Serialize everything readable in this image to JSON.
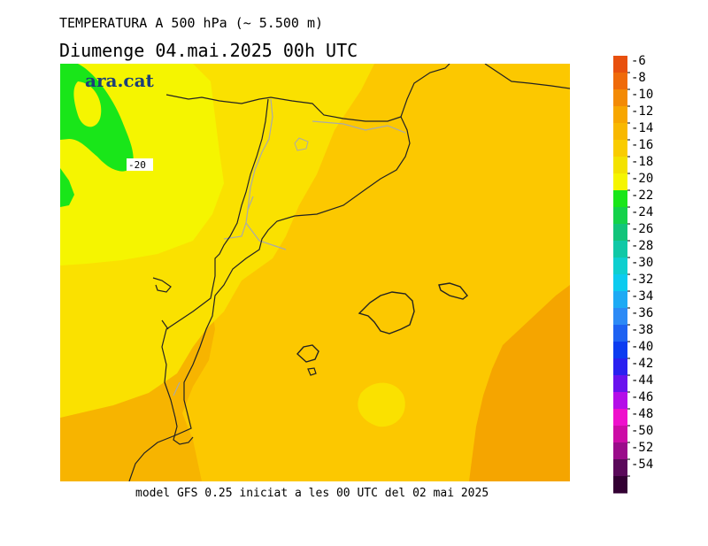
{
  "header": {
    "title": "TEMPERATURA A 500 hPa (~ 5.500 m)",
    "subtitle": "Diumenge  04.mai.2025 00h UTC"
  },
  "map": {
    "logo_text": "ara.cat",
    "contour_label": "-20",
    "colors": {
      "green": "#19e619",
      "yellow": "#f5f500",
      "yellow_orange": "#fae100",
      "light_orange": "#fcc800",
      "orange": "#f7b400",
      "dark_orange": "#f5a500",
      "coast": "#222222",
      "border": "#aaaaaa"
    }
  },
  "legend": {
    "labels": [
      "-6",
      "-8",
      "-10",
      "-12",
      "-14",
      "-16",
      "-18",
      "-20",
      "-22",
      "-24",
      "-26",
      "-28",
      "-30",
      "-32",
      "-34",
      "-36",
      "-38",
      "-40",
      "-42",
      "-44",
      "-46",
      "-48",
      "-50",
      "-52",
      "-54"
    ],
    "colors": [
      "#e8500e",
      "#ef6a0a",
      "#f38a05",
      "#f7a600",
      "#f8b800",
      "#f9cc00",
      "#f3e200",
      "#f5f500",
      "#19e619",
      "#14d24a",
      "#12c47a",
      "#10c8a6",
      "#0ecfcf",
      "#0ccbef",
      "#1eaaf4",
      "#2c8af6",
      "#1e62f2",
      "#0c3cf0",
      "#2a20f0",
      "#6a12ee",
      "#b40ee8",
      "#ee10cc",
      "#cc0ca6",
      "#9a0c8a",
      "#5a0a5a",
      "#330033"
    ]
  },
  "footer": {
    "text": "model GFS 0.25 iniciat a les 00 UTC del 02 mai 2025"
  }
}
